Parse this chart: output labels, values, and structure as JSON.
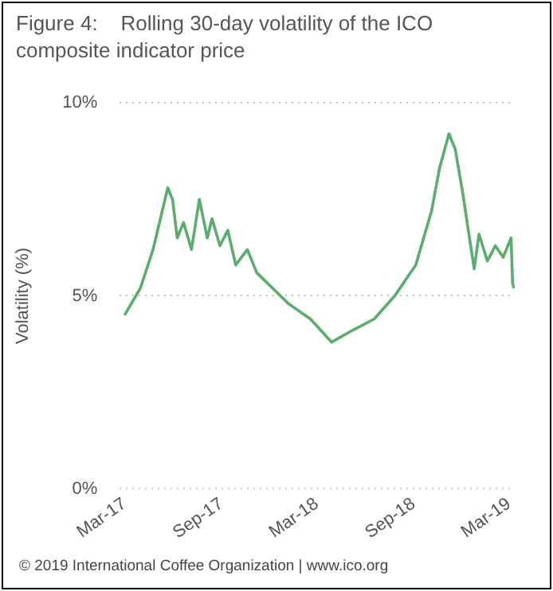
{
  "chart_data": {
    "type": "line",
    "title": "Figure 4:    Rolling 30-day volatility of the ICO composite indicator price",
    "ylabel": "Volatility (%)",
    "x": [
      "2017-03-01",
      "2017-03-31",
      "2017-04-24",
      "2017-05-22",
      "2017-05-31",
      "2017-06-09",
      "2017-06-21",
      "2017-07-06",
      "2017-07-21",
      "2017-08-05",
      "2017-08-14",
      "2017-08-29",
      "2017-09-13",
      "2017-09-28",
      "2017-10-20",
      "2017-11-07",
      "2017-12-07",
      "2018-01-06",
      "2018-02-17",
      "2018-03-29",
      "2018-05-07",
      "2018-06-18",
      "2018-07-27",
      "2018-09-05",
      "2018-10-05",
      "2018-10-20",
      "2018-11-07",
      "2018-11-19",
      "2018-12-04",
      "2018-12-16",
      "2018-12-25",
      "2019-01-03",
      "2019-01-19",
      "2019-02-03",
      "2019-02-18",
      "2019-03-05",
      "2019-03-08",
      "2019-03-11"
    ],
    "series": [
      {
        "color": "#5aad6e",
        "values": [
          4.5,
          5.2,
          6.2,
          7.8,
          7.5,
          6.5,
          6.9,
          6.2,
          7.5,
          6.5,
          7.0,
          6.3,
          6.7,
          5.8,
          6.2,
          5.6,
          5.2,
          4.8,
          4.4,
          3.8,
          4.1,
          4.4,
          5.0,
          5.8,
          7.2,
          8.3,
          9.2,
          8.8,
          7.6,
          6.5,
          5.7,
          6.6,
          5.9,
          6.3,
          6.0,
          6.5,
          5.3,
          5.2
        ]
      }
    ],
    "xlim": [
      "2017-02-20",
      "2019-03-12"
    ],
    "xticks": [
      {
        "value": "2017-03",
        "label": "Mar-17"
      },
      {
        "value": "2017-09",
        "label": "Sep-17"
      },
      {
        "value": "2018-03",
        "label": "Mar-18"
      },
      {
        "value": "2018-09",
        "label": "Sep-18"
      },
      {
        "value": "2019-03",
        "label": "Mar-19"
      }
    ],
    "ylim": [
      0,
      10
    ],
    "yticks": [
      {
        "value": 0,
        "label": "0%"
      },
      {
        "value": 5,
        "label": "5%"
      },
      {
        "value": 10,
        "label": "10%"
      }
    ],
    "grid": "y",
    "legend": false,
    "marker": "none",
    "line_style": "solid",
    "annotations": [
      "© 2019 International Coffee Organization | www.ico.org"
    ]
  }
}
